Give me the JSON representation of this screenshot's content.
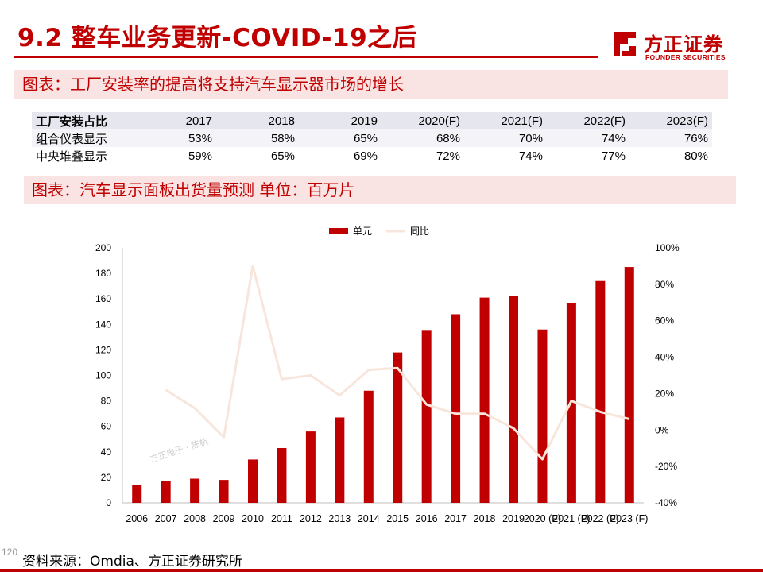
{
  "header": {
    "title": "9.2 整车业务更新-COVID-19之后",
    "logo_cn": "方正证券",
    "logo_en": "FOUNDER SECURITIES"
  },
  "banner1": "图表：工厂安装率的提高将支持汽车显示器市场的增长",
  "install_table": {
    "header": [
      "工厂安装占比",
      "2017",
      "2018",
      "2019",
      "2020(F)",
      "2021(F)",
      "2022(F)",
      "2023(F)"
    ],
    "rows": [
      [
        "组合仪表显示",
        "53%",
        "58%",
        "65%",
        "68%",
        "70%",
        "74%",
        "76%"
      ],
      [
        "中央堆叠显示",
        "59%",
        "65%",
        "69%",
        "72%",
        "74%",
        "77%",
        "80%"
      ]
    ]
  },
  "banner2": "图表：汽车显示面板出货量预测    单位：百万片",
  "chart_data": {
    "type": "bar",
    "categories": [
      "2006",
      "2007",
      "2008",
      "2009",
      "2010",
      "2011",
      "2012",
      "2013",
      "2014",
      "2015",
      "2016",
      "2017",
      "2018",
      "2019",
      "2020 (F)",
      "2021 (F)",
      "2022 (F)",
      "2023 (F)"
    ],
    "series": [
      {
        "name": "单元",
        "type": "bar",
        "axis": "left",
        "color": "#c00000",
        "values": [
          14,
          17,
          19,
          18,
          34,
          43,
          56,
          67,
          88,
          118,
          135,
          148,
          161,
          162,
          136,
          157,
          174,
          185
        ]
      },
      {
        "name": "同比",
        "type": "line",
        "axis": "right",
        "color": "#f8e6dc",
        "values": [
          null,
          22,
          12,
          -4,
          90,
          28,
          30,
          19,
          33,
          34,
          14,
          9,
          9,
          1,
          -16,
          16,
          10,
          6
        ]
      }
    ],
    "title": "",
    "xlabel": "",
    "ylabel": "",
    "ylabel_right": "",
    "ylim": [
      0,
      200
    ],
    "yticks": [
      0,
      20,
      40,
      60,
      80,
      100,
      120,
      140,
      160,
      180,
      200
    ],
    "ylim_right": [
      -40,
      100
    ],
    "yticks_right": [
      "-40%",
      "-20%",
      "0%",
      "20%",
      "40%",
      "60%",
      "80%",
      "100%"
    ],
    "legend_position": "top",
    "grid": false,
    "watermark": "方正电子 · 陈杭"
  },
  "source": "资料来源：Omdia、方正证券研究所",
  "page_number": "120",
  "colors": {
    "brand_red": "#c00000",
    "banner_bg": "#f9e3e3",
    "line": "#f8e6dc"
  }
}
